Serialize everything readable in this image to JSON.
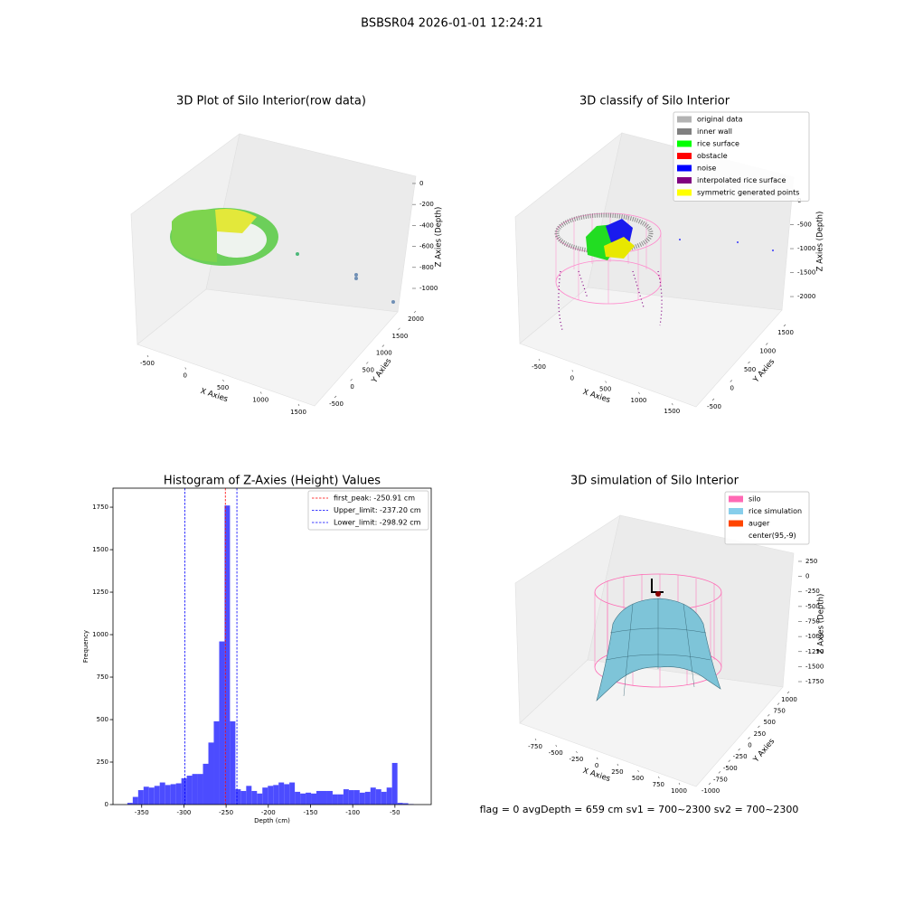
{
  "title": "BSBSR04 2026-01-01 12:24:21",
  "footer": "flag = 0     avgDepth = 659 cm  sv1 = 700~2300  sv2 = 700~2300",
  "chart_data": [
    {
      "type": "scatter3d",
      "title": "3D Plot of Silo Interior(row data)",
      "xlabel": "X Axies",
      "ylabel": "Y Axies",
      "zlabel": "Z Axies (Depth)",
      "xlim": [
        -700,
        1700
      ],
      "xticks": [
        -500,
        0,
        500,
        1000,
        1500
      ],
      "ylim": [
        -700,
        2150
      ],
      "yticks": [
        -500,
        0,
        500,
        1000,
        1500,
        2000
      ],
      "zlim": [
        -1100,
        60
      ],
      "zticks": [
        0,
        -200,
        -400,
        -600,
        -800,
        -1000
      ]
    },
    {
      "type": "scatter3d",
      "title": "3D classify of Silo Interior",
      "xlabel": "X Axies",
      "ylabel": "Y Axies",
      "zlabel": "Z Axies (Depth)",
      "xlim": [
        -700,
        1700
      ],
      "xticks": [
        -500,
        0,
        500,
        1000,
        1500
      ],
      "ylim": [
        -700,
        1700
      ],
      "yticks": [
        -500,
        0,
        500,
        1000,
        1500
      ],
      "zlim": [
        -2150,
        100
      ],
      "zticks": [
        0,
        -500,
        -1000,
        -1500,
        -2000
      ],
      "legend": [
        {
          "name": "original data",
          "color": "#b3b3b3"
        },
        {
          "name": "inner wall",
          "color": "#808080"
        },
        {
          "name": "rice surface",
          "color": "#00ff00"
        },
        {
          "name": "obstacle",
          "color": "#ff0000"
        },
        {
          "name": "noise",
          "color": "#0000ff"
        },
        {
          "name": "interpolated rice surface",
          "color": "#800080"
        },
        {
          "name": "symmetric generated points",
          "color": "#ffff00"
        }
      ]
    },
    {
      "type": "histogram",
      "title": "Histogram of Z-Axies (Height) Values",
      "xlabel": "Depth (cm)",
      "ylabel": "Frequency",
      "color": "#4c4cff",
      "bins": [
        -367,
        -360.6,
        -354.2,
        -347.8,
        -341.4,
        -335,
        -328.6,
        -322.2,
        -315.8,
        -309.4,
        -303,
        -296.6,
        -290.2,
        -283.8,
        -277.4,
        -271,
        -264.6,
        -258.2,
        -251.8,
        -245.4,
        -239,
        -232.6,
        -226.2,
        -219.8,
        -213.4,
        -207,
        -200.6,
        -194.2,
        -187.8,
        -181.4,
        -175,
        -168.6,
        -162.2,
        -155.8,
        -149.4,
        -143,
        -136.6,
        -130.2,
        -123.8,
        -117.4,
        -111,
        -104.6,
        -98.2,
        -91.8,
        -85.4,
        -79,
        -72.6,
        -66.2,
        -59.8,
        -53.4,
        -47,
        -40.6,
        -34.2,
        -27.8
      ],
      "counts": [
        10,
        45,
        85,
        105,
        100,
        110,
        130,
        115,
        120,
        125,
        155,
        170,
        180,
        180,
        240,
        365,
        490,
        960,
        1760,
        490,
        90,
        80,
        110,
        80,
        65,
        100,
        110,
        115,
        130,
        120,
        130,
        75,
        65,
        70,
        65,
        80,
        80,
        80,
        60,
        60,
        90,
        85,
        85,
        70,
        75,
        100,
        90,
        75,
        100,
        245,
        10,
        8,
        3
      ],
      "xlim": [
        -384,
        -7
      ],
      "xticks": [
        -350,
        -300,
        -250,
        -200,
        -150,
        -100,
        -50
      ],
      "ylim": [
        0,
        1862
      ],
      "yticks": [
        0,
        250,
        500,
        750,
        1000,
        1250,
        1500,
        1750
      ],
      "lines": [
        {
          "name": "first_peak: -250.91 cm",
          "value": -250.91,
          "color": "#ff0000"
        },
        {
          "name": "Upper_limit: -237.20 cm",
          "value": -237.2,
          "color": "#0000ff"
        },
        {
          "name": "Lower_limit: -298.92 cm",
          "value": -298.92,
          "color": "#0000ff"
        }
      ],
      "legend_position": "upper right"
    },
    {
      "type": "surface3d",
      "title": "3D simulation of Silo Interior",
      "xlabel": "X Axies",
      "ylabel": "Y Axies",
      "zlabel": "Z Axies (Depth)",
      "xlim": [
        -900,
        1100
      ],
      "xticks": [
        -750,
        -500,
        -250,
        0,
        250,
        500,
        750,
        1000
      ],
      "ylim": [
        -1150,
        1150
      ],
      "yticks": [
        -1000,
        -750,
        -500,
        -250,
        0,
        250,
        500,
        750,
        1000
      ],
      "zlim": [
        -1900,
        400
      ],
      "zticks": [
        250,
        0,
        -250,
        -500,
        -750,
        -1000,
        -1250,
        -1500,
        -1750
      ],
      "legend": [
        {
          "name": "silo",
          "color": "#ff69b4"
        },
        {
          "name": "rice simulation",
          "color": "#87ceeb"
        },
        {
          "name": "auger",
          "color": "#ff4500"
        },
        {
          "name": "center(95,-9)"
        }
      ]
    }
  ]
}
